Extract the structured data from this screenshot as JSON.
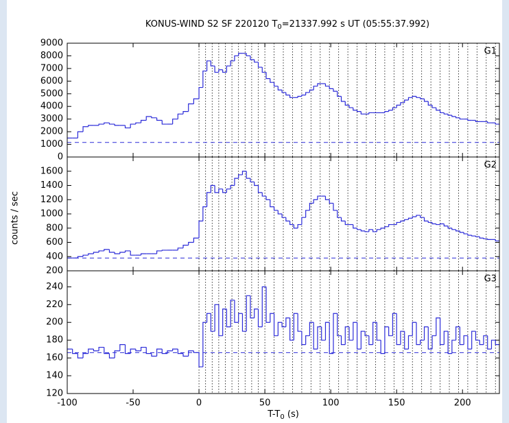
{
  "chart_data": {
    "type": "step",
    "title": "KONUS-WIND S2 SF 220120 T",
    "title_sub": "0",
    "title_rest": "=21337.992 s UT (05:55:37.992)",
    "xlabel": "T-T",
    "xlabel_sub": "0",
    "xlabel_rest": " (s)",
    "ylabel": "counts / sec",
    "color": "#2a2ad8",
    "xlim": [
      -100,
      228
    ],
    "xticks": [
      -100,
      -50,
      0,
      50,
      100,
      150,
      200
    ],
    "dotted_x": [
      0,
      5,
      10,
      15,
      20,
      25,
      30,
      35,
      40,
      45,
      50,
      57,
      64,
      71,
      78,
      85,
      92,
      99,
      106,
      113,
      120,
      127,
      134,
      141,
      148,
      155,
      162,
      169,
      176,
      183,
      190,
      197,
      204,
      211,
      218,
      225
    ],
    "x": [
      -100,
      -96,
      -92,
      -88,
      -84,
      -80,
      -76,
      -72,
      -68,
      -64,
      -60,
      -56,
      -52,
      -48,
      -44,
      -40,
      -36,
      -32,
      -28,
      -24,
      -20,
      -16,
      -12,
      -8,
      -4,
      0,
      3,
      6,
      9,
      12,
      15,
      18,
      21,
      24,
      27,
      30,
      33,
      36,
      39,
      42,
      45,
      48,
      51,
      54,
      57,
      60,
      63,
      66,
      69,
      72,
      75,
      78,
      81,
      84,
      87,
      90,
      93,
      96,
      99,
      102,
      105,
      108,
      111,
      114,
      117,
      120,
      123,
      126,
      129,
      132,
      135,
      138,
      141,
      144,
      147,
      150,
      153,
      156,
      159,
      162,
      165,
      168,
      171,
      174,
      177,
      180,
      183,
      186,
      189,
      192,
      195,
      198,
      201,
      204,
      207,
      210,
      213,
      216,
      219,
      222,
      225
    ],
    "panels": [
      {
        "label": "G1",
        "ylim": [
          0,
          9000
        ],
        "yticks": [
          0,
          1000,
          2000,
          3000,
          4000,
          5000,
          6000,
          7000,
          8000,
          9000
        ],
        "background": 1150,
        "values": [
          1500,
          1500,
          2000,
          2400,
          2500,
          2500,
          2600,
          2700,
          2600,
          2500,
          2500,
          2300,
          2600,
          2700,
          2900,
          3200,
          3100,
          2900,
          2600,
          2600,
          3000,
          3400,
          3600,
          4200,
          4600,
          5500,
          6800,
          7600,
          7200,
          6700,
          6900,
          6700,
          7200,
          7600,
          8000,
          8200,
          8200,
          8000,
          7700,
          7500,
          7100,
          6700,
          6200,
          5900,
          5600,
          5300,
          5100,
          4900,
          4700,
          4700,
          4800,
          4900,
          5100,
          5300,
          5600,
          5800,
          5800,
          5600,
          5400,
          5200,
          4800,
          4400,
          4100,
          3900,
          3700,
          3600,
          3400,
          3400,
          3500,
          3500,
          3500,
          3500,
          3600,
          3700,
          3900,
          4100,
          4300,
          4500,
          4700,
          4800,
          4700,
          4600,
          4400,
          4100,
          3900,
          3700,
          3500,
          3400,
          3300,
          3200,
          3100,
          3000,
          3000,
          2900,
          2900,
          2800,
          2800,
          2800,
          2700,
          2700,
          2600
        ]
      },
      {
        "label": "G2",
        "ylim": [
          200,
          1800
        ],
        "yticks": [
          200,
          400,
          600,
          800,
          1000,
          1200,
          1400,
          1600
        ],
        "background": 380,
        "values": [
          380,
          380,
          400,
          420,
          440,
          460,
          480,
          500,
          460,
          440,
          460,
          480,
          420,
          420,
          440,
          440,
          440,
          480,
          490,
          490,
          490,
          520,
          560,
          600,
          660,
          900,
          1100,
          1300,
          1400,
          1300,
          1350,
          1300,
          1350,
          1400,
          1500,
          1550,
          1600,
          1500,
          1450,
          1400,
          1300,
          1250,
          1200,
          1100,
          1050,
          1000,
          950,
          900,
          850,
          800,
          850,
          950,
          1050,
          1150,
          1200,
          1250,
          1250,
          1200,
          1150,
          1050,
          950,
          900,
          850,
          850,
          800,
          780,
          760,
          750,
          780,
          750,
          780,
          800,
          820,
          850,
          850,
          880,
          900,
          920,
          940,
          960,
          980,
          950,
          900,
          880,
          860,
          850,
          860,
          830,
          800,
          780,
          760,
          740,
          720,
          700,
          690,
          680,
          660,
          650,
          640,
          640,
          620
        ]
      },
      {
        "label": "G3",
        "ylim": [
          120,
          258
        ],
        "yticks": [
          120,
          140,
          160,
          180,
          200,
          220,
          240
        ],
        "background": 166,
        "values": [
          170,
          165,
          160,
          165,
          170,
          168,
          172,
          165,
          160,
          168,
          175,
          165,
          170,
          168,
          172,
          165,
          162,
          170,
          165,
          168,
          170,
          165,
          162,
          168,
          166,
          150,
          200,
          210,
          190,
          220,
          185,
          215,
          195,
          225,
          200,
          210,
          190,
          230,
          205,
          215,
          195,
          240,
          200,
          210,
          185,
          200,
          195,
          205,
          180,
          210,
          190,
          175,
          185,
          200,
          170,
          195,
          180,
          200,
          165,
          210,
          185,
          175,
          195,
          180,
          200,
          170,
          190,
          185,
          175,
          200,
          180,
          165,
          195,
          185,
          210,
          175,
          190,
          170,
          185,
          200,
          175,
          180,
          195,
          170,
          185,
          205,
          175,
          190,
          165,
          180,
          195,
          175,
          185,
          170,
          190,
          180,
          175,
          185,
          170,
          180,
          175
        ]
      }
    ]
  }
}
